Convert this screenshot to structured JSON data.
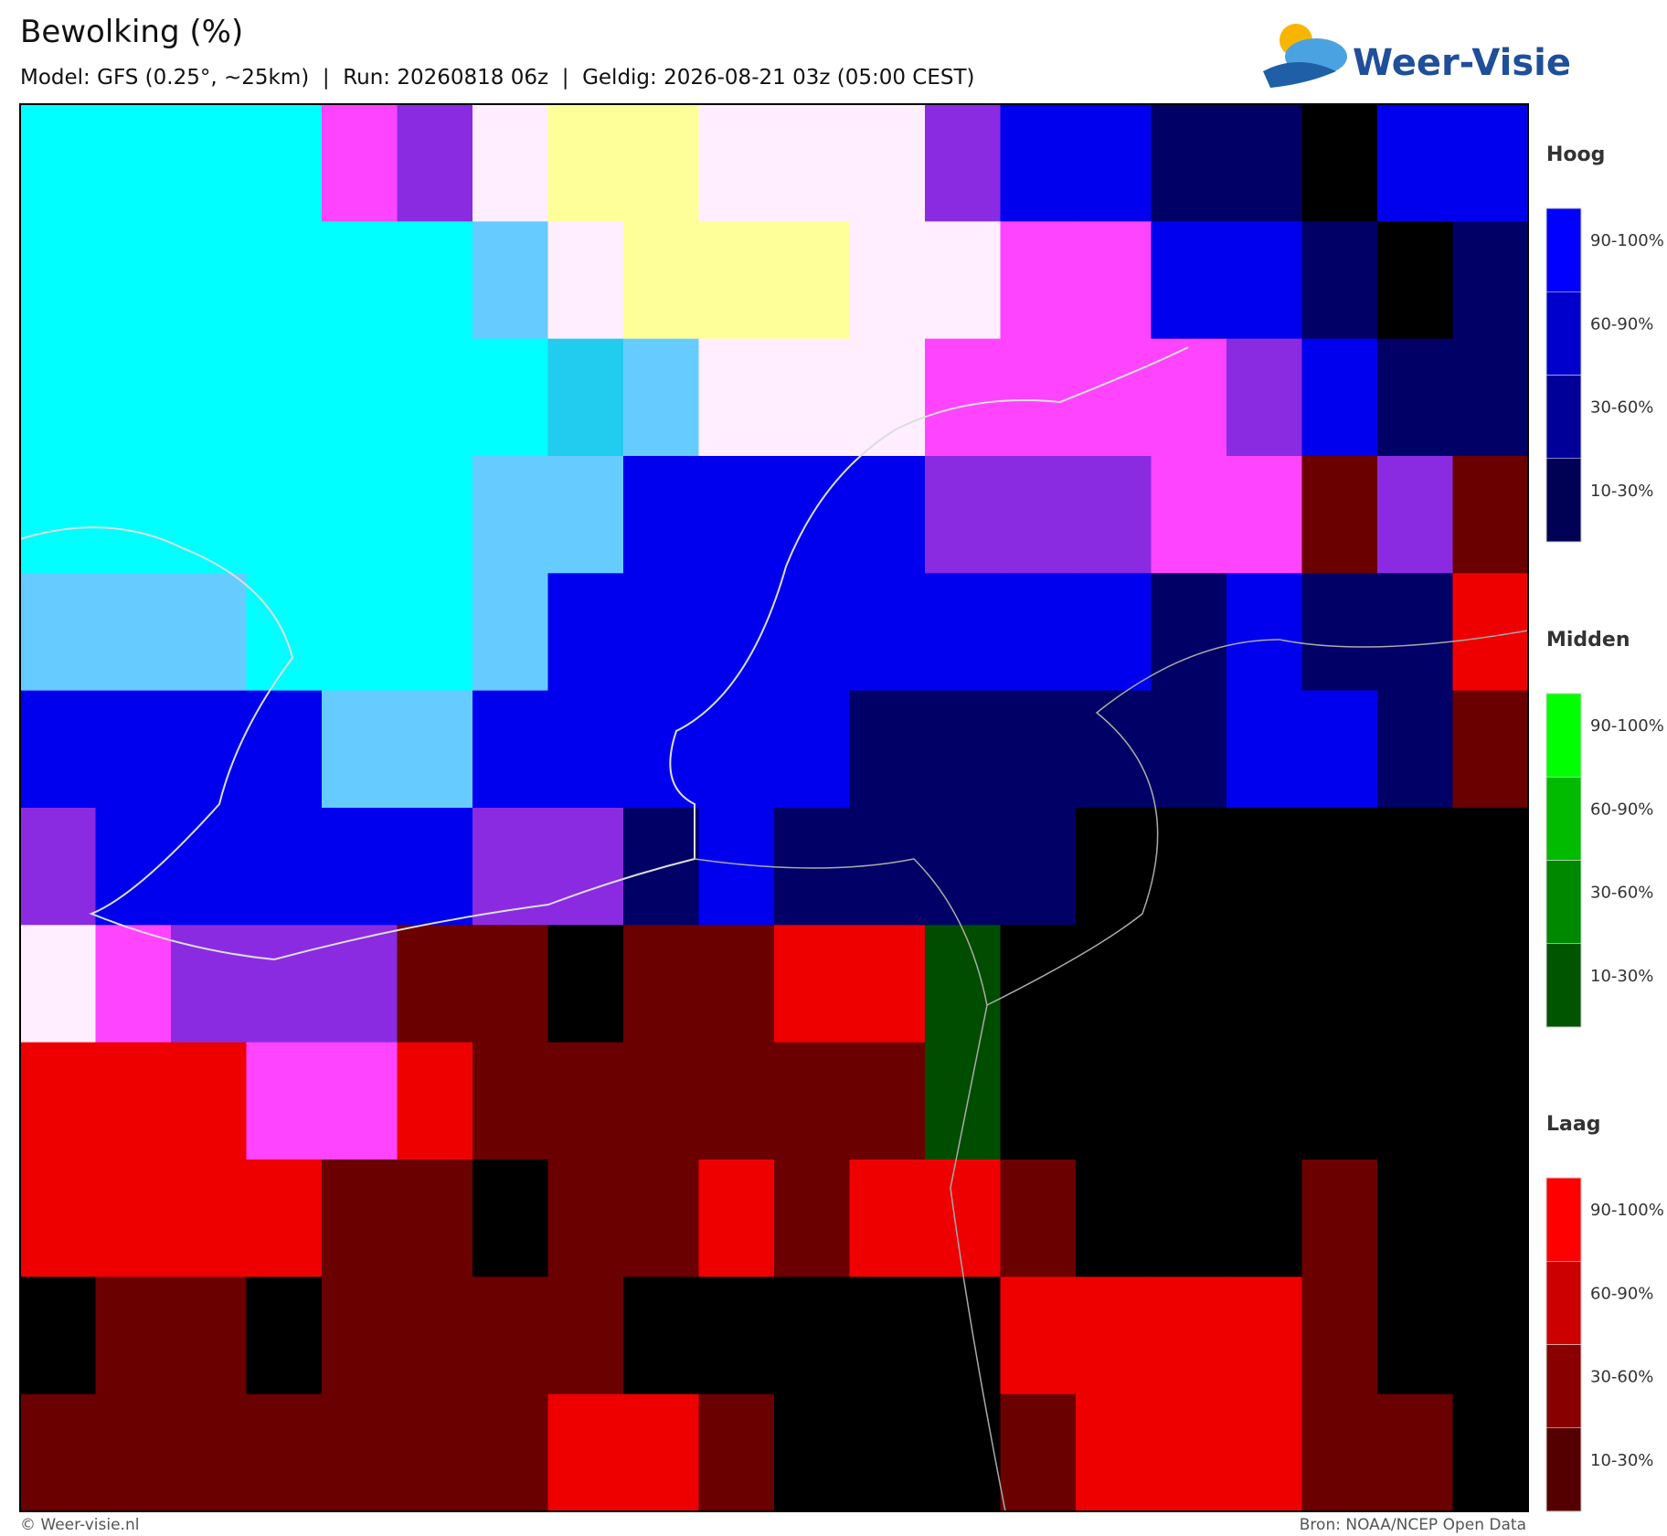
{
  "header": {
    "title": "Bewolking (%)",
    "subtitle": "Model: GFS (0.25°, ~25km)  |  Run: 20260818 06z  |  Geldig: 2026-08-21 03z (05:00 CEST)"
  },
  "logo": {
    "text": "Weer-Visie"
  },
  "legend": {
    "groups": [
      {
        "title": "Hoog",
        "labels": [
          "90-100%",
          "60-90%",
          "30-60%",
          "10-30%"
        ],
        "colors": [
          "#0000ff",
          "#0000cc",
          "#000099",
          "#000055"
        ]
      },
      {
        "title": "Midden",
        "labels": [
          "90-100%",
          "60-90%",
          "30-60%",
          "10-30%"
        ],
        "colors": [
          "#00ff00",
          "#00bb00",
          "#008800",
          "#005500"
        ]
      },
      {
        "title": "Laag",
        "labels": [
          "90-100%",
          "60-90%",
          "30-60%",
          "10-30%"
        ],
        "colors": [
          "#ff0000",
          "#cc0000",
          "#880000",
          "#550000"
        ]
      }
    ]
  },
  "footer": {
    "left": "© Weer-visie.nl",
    "right": "Bron: NOAA/NCEP Open Data"
  }
}
